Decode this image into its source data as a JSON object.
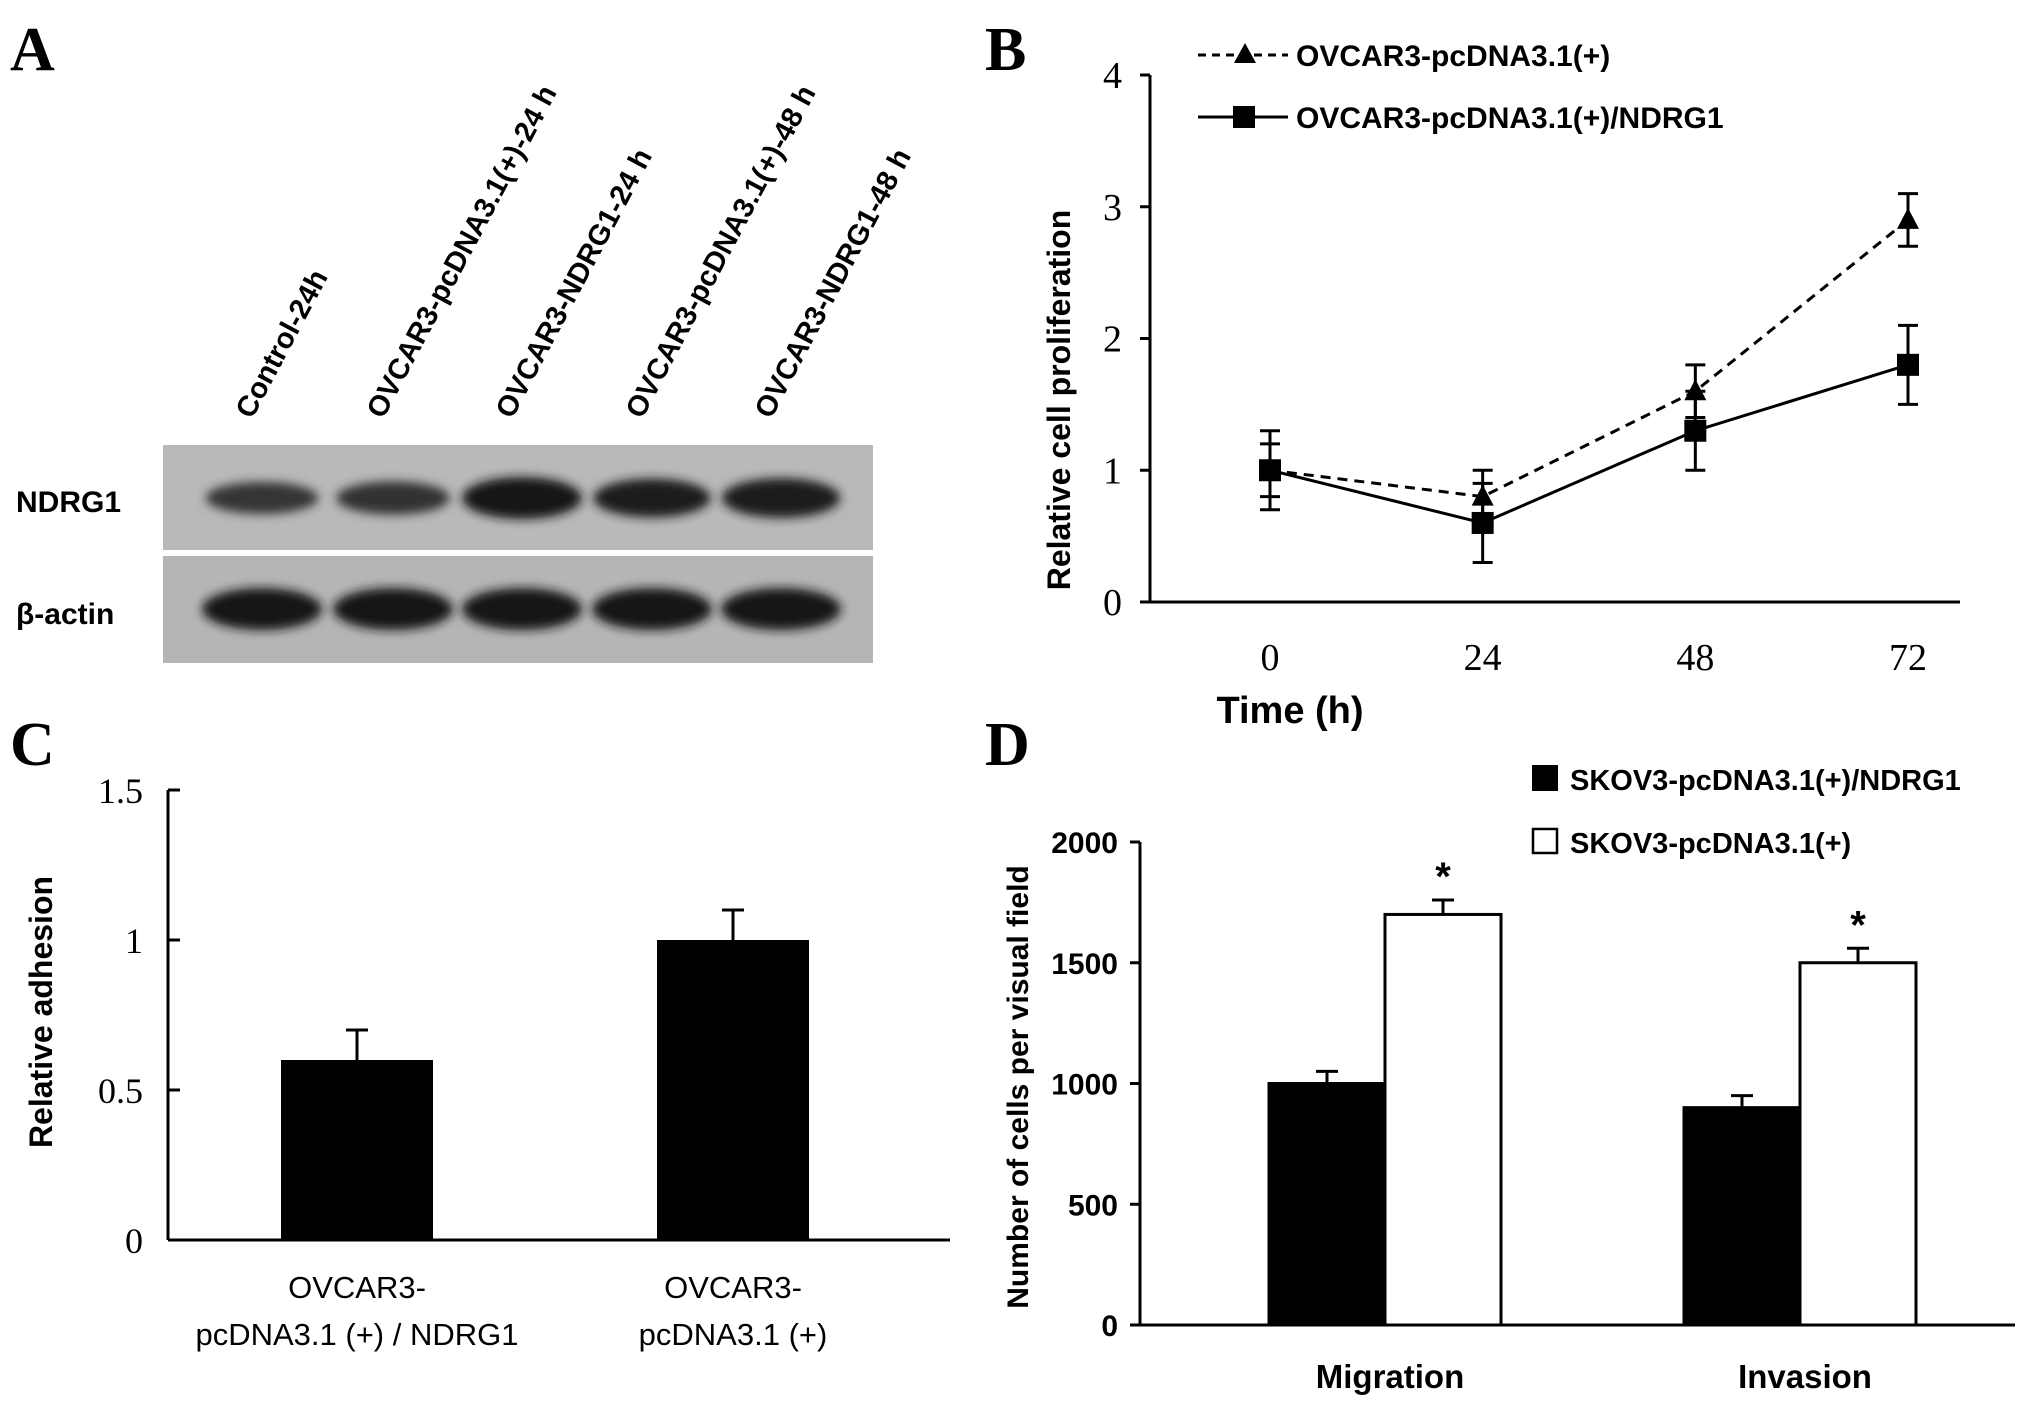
{
  "panels": {
    "A": {
      "letter": "A",
      "lanes": [
        "Control-24h",
        "OVCAR3-pcDNA3.1(+)-24 h",
        "OVCAR3-NDRG1-24 h",
        "OVCAR3-pcDNA3.1(+)-48 h",
        "OVCAR3-NDRG1-48 h"
      ],
      "rows": [
        {
          "label": "NDRG1",
          "band_intensity": [
            0.55,
            0.6,
            1.0,
            0.85,
            0.9
          ]
        },
        {
          "label": "β-actin",
          "band_intensity": [
            1.0,
            1.0,
            1.0,
            1.0,
            1.0
          ]
        }
      ]
    },
    "B": {
      "letter": "B"
    },
    "C": {
      "letter": "C"
    },
    "D": {
      "letter": "D"
    }
  },
  "chart_data": [
    {
      "panel": "B",
      "type": "line",
      "x": [
        0,
        24,
        48,
        72
      ],
      "x_tick_labels": [
        "0",
        "24",
        "48",
        "72"
      ],
      "xlabel": "Time (h)",
      "ylabel": "Relative cell proliferation",
      "ylim": [
        0,
        4
      ],
      "y_ticks": [
        0,
        1,
        2,
        3,
        4
      ],
      "grid": false,
      "legend_position": "top-left",
      "series": [
        {
          "name": "OVCAR3-pcDNA3.1(+)",
          "values": [
            1.0,
            0.8,
            1.6,
            2.9
          ],
          "errors": [
            0.2,
            0.2,
            0.2,
            0.2
          ],
          "marker": "triangle",
          "line": "dashed",
          "color": "#000000"
        },
        {
          "name": "OVCAR3-pcDNA3.1(+)/NDRG1",
          "values": [
            1.0,
            0.6,
            1.3,
            1.8
          ],
          "errors": [
            0.3,
            0.3,
            0.3,
            0.3
          ],
          "marker": "square",
          "line": "solid",
          "color": "#000000"
        }
      ]
    },
    {
      "panel": "C",
      "type": "bar",
      "categories": [
        [
          "OVCAR3-",
          "pcDNA3.1 (+) / NDRG1"
        ],
        [
          "OVCAR3-",
          "pcDNA3.1 (+)"
        ]
      ],
      "values": [
        0.6,
        1.0
      ],
      "errors": [
        0.1,
        0.1
      ],
      "ylabel": "Relative adhesion",
      "ylim": [
        0,
        1.5
      ],
      "y_ticks": [
        0,
        0.5,
        1,
        1.5
      ],
      "y_tick_labels": [
        "0",
        "0.5",
        "1",
        "1.5"
      ],
      "grid": false,
      "bar_color": "#000000"
    },
    {
      "panel": "D",
      "type": "bar",
      "categories": [
        "Migration",
        "Invasion"
      ],
      "ylabel": "Number of cells per visual field",
      "ylim": [
        0,
        2000
      ],
      "y_ticks": [
        0,
        500,
        1000,
        1500,
        2000
      ],
      "grid": false,
      "legend_position": "top-right",
      "series": [
        {
          "name": "SKOV3-pcDNA3.1(+)/NDRG1",
          "values": [
            1000,
            900
          ],
          "errors": [
            50,
            50
          ],
          "fill": "#000000"
        },
        {
          "name": "SKOV3-pcDNA3.1(+)",
          "values": [
            1700,
            1500
          ],
          "errors": [
            60,
            60
          ],
          "fill": "#ffffff"
        }
      ],
      "annotations": [
        "*",
        "*"
      ]
    }
  ]
}
